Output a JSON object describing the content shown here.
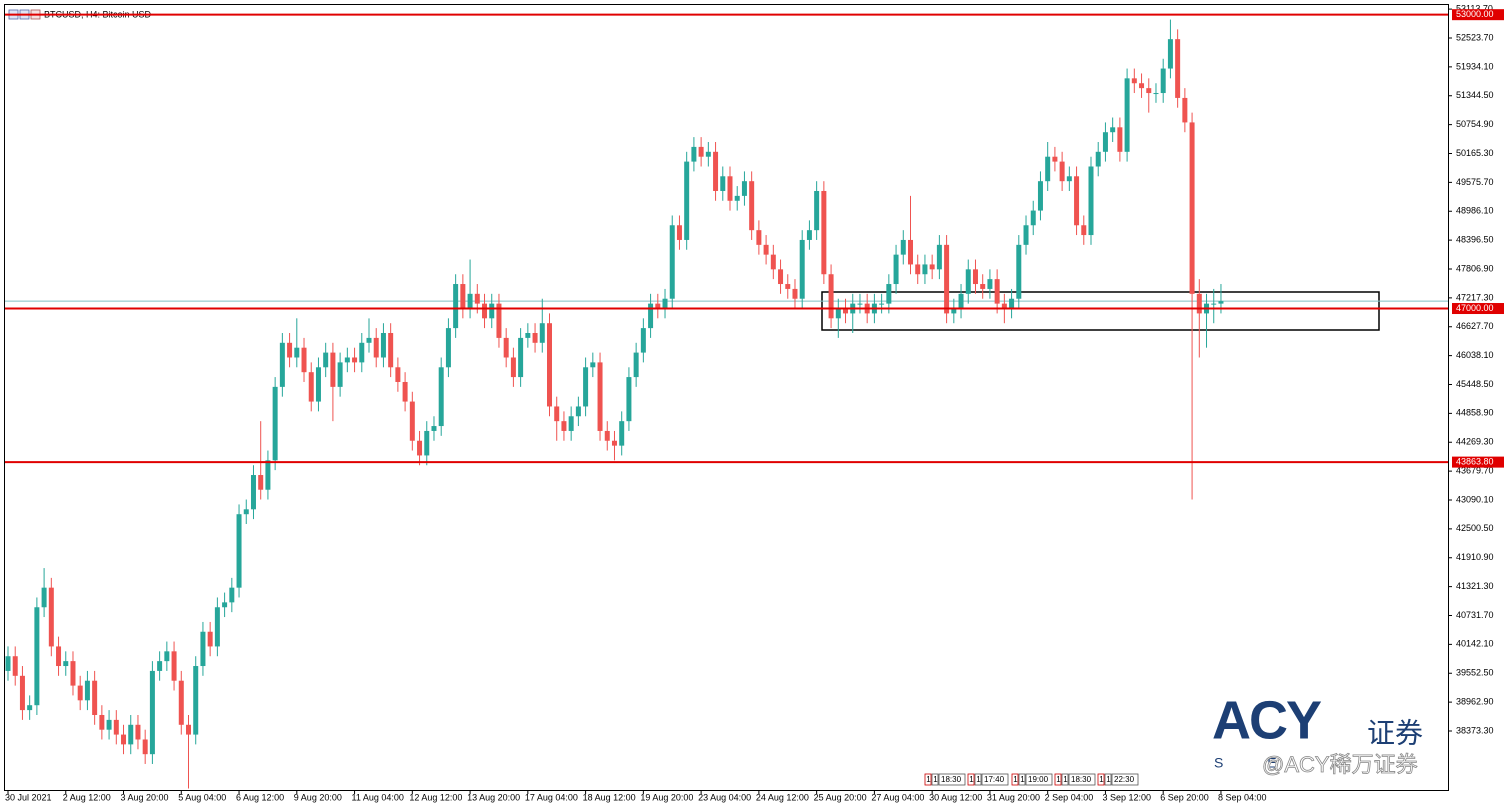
{
  "chart_data": {
    "type": "candlestick",
    "title": "BTCUSD, H4:  Bitcoin USD",
    "up_color": "#26a69a",
    "down_color": "#ef5350",
    "ylim": [
      37168.5,
      53299.7
    ],
    "yticks": [
      {
        "value": 53113.7,
        "label": "53113.70"
      },
      {
        "value": 52523.7,
        "label": "52523.70"
      },
      {
        "value": 51934.1,
        "label": "51934.10"
      },
      {
        "value": 51344.5,
        "label": "51344.50"
      },
      {
        "value": 50754.9,
        "label": "50754.90"
      },
      {
        "value": 50165.3,
        "label": "50165.30"
      },
      {
        "value": 49575.7,
        "label": "49575.70"
      },
      {
        "value": 48986.1,
        "label": "48986.10"
      },
      {
        "value": 48396.5,
        "label": "48396.50"
      },
      {
        "value": 47806.9,
        "label": "47806.90"
      },
      {
        "value": 47217.3,
        "label": "47217.30"
      },
      {
        "value": 46627.7,
        "label": "46627.70"
      },
      {
        "value": 46038.1,
        "label": "46038.10"
      },
      {
        "value": 45448.5,
        "label": "45448.50"
      },
      {
        "value": 44858.9,
        "label": "44858.90"
      },
      {
        "value": 44269.3,
        "label": "44269.30"
      },
      {
        "value": 43679.7,
        "label": "43679.70"
      },
      {
        "value": 43090.1,
        "label": "43090.10"
      },
      {
        "value": 42500.5,
        "label": "42500.50"
      },
      {
        "value": 41910.9,
        "label": "41910.90"
      },
      {
        "value": 41321.3,
        "label": "41321.30"
      },
      {
        "value": 40731.7,
        "label": "40731.70"
      },
      {
        "value": 40142.1,
        "label": "40142.10"
      },
      {
        "value": 39552.5,
        "label": "39552.50"
      },
      {
        "value": 38962.9,
        "label": "38962.90"
      },
      {
        "value": 38373.3,
        "label": "38373.30"
      }
    ],
    "levels": [
      {
        "value": 53000,
        "label": "53000.00",
        "color": "#e00000"
      },
      {
        "value": 47000,
        "label": "47000.00",
        "color": "#e00000"
      },
      {
        "value": 43863.8,
        "label": "43863.80",
        "color": "#e00000"
      }
    ],
    "current_price": {
      "value": 47150,
      "color": "#7fbfc4"
    },
    "categories": [
      "30 Jul 2021",
      null,
      null,
      null,
      null,
      null,
      null,
      null,
      "2 Aug 12:00",
      null,
      null,
      null,
      null,
      null,
      null,
      null,
      "3 Aug 20:00",
      null,
      null,
      null,
      null,
      null,
      null,
      null,
      "5 Aug 04:00",
      null,
      null,
      null,
      null,
      null,
      null,
      null,
      "6 Aug 12:00",
      null,
      null,
      null,
      null,
      null,
      null,
      null,
      "9 Aug 20:00",
      null,
      null,
      null,
      null,
      null,
      null,
      null,
      "11 Aug 04:00",
      null,
      null,
      null,
      null,
      null,
      null,
      null,
      "12 Aug 12:00",
      null,
      null,
      null,
      null,
      null,
      null,
      null,
      "13 Aug 20:00",
      null,
      null,
      null,
      null,
      null,
      null,
      null,
      "17 Aug 04:00",
      null,
      null,
      null,
      null,
      null,
      null,
      null,
      "18 Aug 12:00",
      null,
      null,
      null,
      null,
      null,
      null,
      null,
      "19 Aug 20:00",
      null,
      null,
      null,
      null,
      null,
      null,
      null,
      "23 Aug 04:00",
      null,
      null,
      null,
      null,
      null,
      null,
      null,
      "24 Aug 12:00",
      null,
      null,
      null,
      null,
      null,
      null,
      null,
      "25 Aug 20:00",
      null,
      null,
      null,
      null,
      null,
      null,
      null,
      "27 Aug 04:00",
      null,
      null,
      null,
      null,
      null,
      null,
      null,
      "30 Aug 12:00",
      null,
      null,
      null,
      null,
      null,
      null,
      null,
      "31 Aug 20:00",
      null,
      null,
      null,
      null,
      null,
      null,
      null,
      "2 Sep 04:00",
      null,
      null,
      null,
      null,
      null,
      null,
      null,
      "3 Sep 12:00",
      null,
      null,
      null,
      null,
      null,
      null,
      null,
      "6 Sep 20:00",
      null,
      null,
      null,
      null,
      null,
      null,
      null,
      "8 Sep 04:00"
    ],
    "open": [
      39600,
      39900,
      39500,
      38800,
      38900,
      40900,
      41300,
      40100,
      39700,
      39800,
      39300,
      39000,
      39400,
      38700,
      38400,
      38600,
      38300,
      38100,
      38500,
      38200,
      37900,
      39600,
      39800,
      40000,
      39400,
      38500,
      38300,
      39700,
      40400,
      40100,
      40900,
      41000,
      41300,
      42800,
      42900,
      43600,
      43300,
      43900,
      45400,
      46300,
      46000,
      46200,
      45700,
      45100,
      45800,
      46100,
      45400,
      45900,
      46000,
      45900,
      46300,
      46400,
      46000,
      46500,
      45800,
      45500,
      45100,
      44300,
      44000,
      44500,
      44600,
      45800,
      46600,
      47500,
      47000,
      47300,
      47100,
      46800,
      47100,
      46400,
      46000,
      45600,
      46400,
      46500,
      46300,
      46700,
      45000,
      44700,
      44500,
      44800,
      45000,
      45800,
      45900,
      44500,
      44300,
      44200,
      44700,
      45600,
      46100,
      46600,
      47100,
      47000,
      47200,
      48700,
      48400,
      50000,
      50300,
      50100,
      50200,
      49400,
      49700,
      49200,
      49300,
      49600,
      48600,
      48300,
      48100,
      47800,
      47500,
      47400,
      47200,
      48400,
      48600,
      49400,
      47700,
      46800,
      47000,
      46900,
      47100,
      47100,
      46900,
      47100,
      47100,
      47500,
      48100,
      48400,
      47900,
      47700,
      47900,
      47800,
      48300,
      46900,
      47000,
      47300,
      47800,
      47500,
      47400,
      47600,
      47100,
      47000,
      47200,
      48300,
      48700,
      49000,
      49600,
      50100,
      50000,
      49600,
      49700,
      48700,
      48500,
      49900,
      50200,
      50600,
      50700,
      50200,
      51700,
      51600,
      51500,
      51400,
      51400,
      51900,
      52500,
      51300,
      50800,
      47300,
      46900,
      47100,
      47100
    ],
    "high": [
      40100,
      40100,
      39700,
      39100,
      41100,
      41700,
      41500,
      40300,
      40000,
      40000,
      39500,
      39600,
      39600,
      38900,
      38800,
      38800,
      38500,
      38700,
      38700,
      38400,
      39800,
      40000,
      40200,
      40200,
      39600,
      38700,
      39900,
      40600,
      40600,
      41100,
      41200,
      41500,
      43000,
      43100,
      43800,
      44700,
      44100,
      45600,
      46500,
      46500,
      46800,
      46400,
      45900,
      46000,
      46300,
      46300,
      46100,
      46200,
      46200,
      46500,
      46800,
      46600,
      46700,
      46700,
      46000,
      45700,
      45300,
      44500,
      44700,
      44800,
      46000,
      46800,
      47700,
      47700,
      48000,
      47500,
      47300,
      47300,
      47300,
      46600,
      46200,
      46600,
      46700,
      46700,
      47200,
      46900,
      45200,
      44900,
      45000,
      45200,
      46000,
      46100,
      46100,
      44700,
      44500,
      44900,
      45800,
      46300,
      46800,
      47300,
      47300,
      47400,
      48900,
      48900,
      50200,
      50500,
      50500,
      50400,
      50400,
      49900,
      49900,
      49500,
      49800,
      49800,
      48800,
      48500,
      48300,
      48000,
      47700,
      47600,
      48600,
      48800,
      49600,
      49600,
      47900,
      47200,
      47200,
      47300,
      47300,
      47300,
      47300,
      47300,
      47700,
      48300,
      48600,
      49300,
      48100,
      48100,
      48100,
      48500,
      48500,
      47200,
      47500,
      48000,
      48000,
      47700,
      47800,
      47800,
      47300,
      47400,
      48500,
      48900,
      49200,
      49800,
      50400,
      50300,
      50200,
      49900,
      49900,
      48900,
      50100,
      50400,
      50800,
      50900,
      50900,
      51900,
      51900,
      51800,
      51700,
      51600,
      52100,
      52900,
      52700,
      51500,
      51000,
      47600,
      47300,
      47400,
      47500
    ],
    "low": [
      39400,
      39300,
      38600,
      38600,
      38700,
      40700,
      39900,
      39500,
      39500,
      39100,
      38800,
      38800,
      38500,
      38200,
      38200,
      38100,
      37900,
      37900,
      38000,
      37700,
      37700,
      39400,
      39600,
      39200,
      38300,
      37200,
      38100,
      39500,
      39900,
      39900,
      40700,
      40800,
      41100,
      42600,
      42700,
      43100,
      43100,
      43700,
      45200,
      45800,
      45800,
      45500,
      44900,
      44900,
      45600,
      44700,
      45200,
      45700,
      45700,
      45700,
      46100,
      45800,
      45800,
      45600,
      45300,
      44900,
      44100,
      43800,
      43800,
      44300,
      44400,
      45600,
      46400,
      46800,
      46800,
      46900,
      46600,
      46600,
      46200,
      45800,
      45400,
      45400,
      46200,
      46100,
      46100,
      44800,
      44300,
      44300,
      44300,
      44600,
      44800,
      45600,
      44300,
      44100,
      43900,
      44000,
      44500,
      45400,
      45900,
      46400,
      46800,
      46800,
      47000,
      48200,
      48200,
      49800,
      49900,
      49900,
      49200,
      49200,
      49000,
      49000,
      49100,
      48400,
      48100,
      47900,
      47600,
      47300,
      47200,
      47000,
      47000,
      48200,
      48400,
      47500,
      46600,
      46400,
      46700,
      46500,
      46900,
      46700,
      46700,
      46900,
      46900,
      47300,
      47900,
      47700,
      47500,
      47500,
      47600,
      47600,
      46700,
      46700,
      46800,
      47100,
      47300,
      47200,
      47200,
      46900,
      46700,
      46800,
      47000,
      48100,
      48500,
      48800,
      49400,
      49800,
      49400,
      49400,
      48500,
      48300,
      48300,
      49700,
      50000,
      50400,
      50000,
      50000,
      51400,
      51300,
      51000,
      51200,
      51200,
      51700,
      51100,
      50600,
      43100,
      46000,
      46200,
      46700,
      46900
    ],
    "close": [
      39900,
      39500,
      38800,
      38900,
      40900,
      41300,
      40100,
      39700,
      39800,
      39300,
      39000,
      39400,
      38700,
      38400,
      38600,
      38300,
      38100,
      38500,
      38200,
      37900,
      39600,
      39800,
      40000,
      39400,
      38500,
      38300,
      39700,
      40400,
      40100,
      40900,
      41000,
      41300,
      42800,
      42900,
      43600,
      43300,
      43900,
      45400,
      46300,
      46000,
      46200,
      45700,
      45100,
      45800,
      46100,
      45400,
      45900,
      46000,
      45900,
      46300,
      46400,
      46000,
      46500,
      45800,
      45500,
      45100,
      44300,
      44000,
      44500,
      44600,
      45800,
      46600,
      47500,
      47000,
      47300,
      47100,
      46800,
      47100,
      46400,
      46000,
      45600,
      46400,
      46500,
      46300,
      46700,
      45000,
      44700,
      44500,
      44800,
      45000,
      45800,
      45900,
      44500,
      44300,
      44200,
      44700,
      45600,
      46100,
      46600,
      47100,
      47000,
      47200,
      48700,
      48400,
      50000,
      50300,
      50100,
      50200,
      49400,
      49700,
      49200,
      49300,
      49600,
      48600,
      48300,
      48100,
      47800,
      47500,
      47400,
      47200,
      48400,
      48600,
      49400,
      47700,
      46800,
      47000,
      46900,
      47100,
      47100,
      46900,
      47100,
      47100,
      47500,
      48100,
      48400,
      47900,
      47700,
      47900,
      47800,
      48300,
      46900,
      47000,
      47300,
      47800,
      47500,
      47400,
      47600,
      47100,
      47000,
      47200,
      48300,
      48700,
      49000,
      49600,
      50100,
      50000,
      49600,
      49700,
      48700,
      48500,
      49900,
      50200,
      50600,
      50700,
      50200,
      51700,
      51600,
      51500,
      51400,
      51400,
      51900,
      52500,
      51300,
      50800,
      47300,
      46900,
      47100,
      47100,
      47150
    ],
    "event_markers": [
      {
        "flags": [
          "1",
          "1"
        ],
        "time": "18:30"
      },
      {
        "flags": [
          "1",
          "1"
        ],
        "time": "17:40"
      },
      {
        "flags": [
          "1",
          "1"
        ],
        "time": "19:00"
      },
      {
        "flags": [
          "1",
          "1"
        ],
        "time": "18:30"
      },
      {
        "flags": [
          "1",
          "1"
        ],
        "time": "22:30"
      }
    ],
    "watermark": {
      "brand": "ACY",
      "suffix": "证券",
      "tagline": "S E",
      "caption": "@ACY稀万证券"
    }
  }
}
